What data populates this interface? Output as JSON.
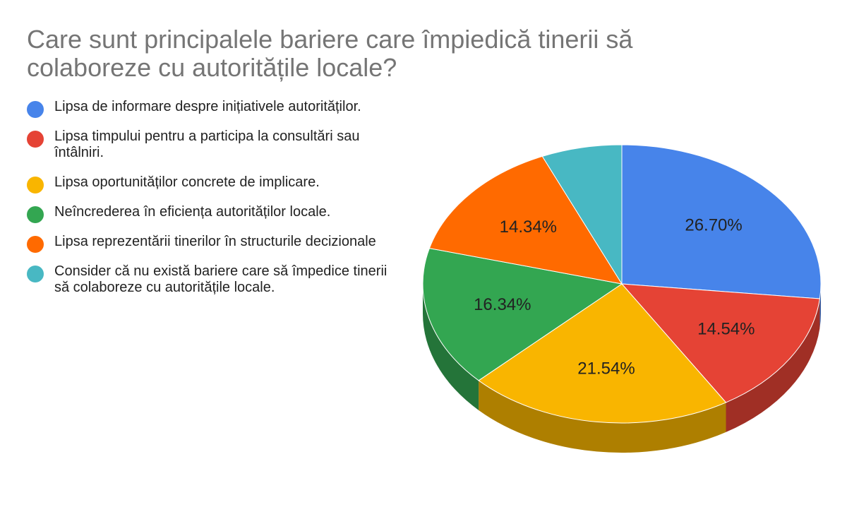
{
  "chart_data": {
    "type": "pie",
    "title": "Care sunt principalele bariere care împiedică tinerii să colaboreze cu autoritățile locale?",
    "legend_position": "left",
    "three_d": true,
    "slices": [
      {
        "label": "Lipsa de informare despre inițiativele autorităților.",
        "value": 26.7,
        "value_label": "26.70%",
        "color": "#4784ea"
      },
      {
        "label": "Lipsa timpului pentru a participa la consultări sau întâlniri.",
        "value": 14.54,
        "value_label": "14.54%",
        "color": "#e54335"
      },
      {
        "label": "Lipsa oportunităților concrete de implicare.",
        "value": 21.54,
        "value_label": "21.54%",
        "color": "#f9b500"
      },
      {
        "label": "Neîncrederea în eficiența autorităților locale.",
        "value": 16.34,
        "value_label": "16.34%",
        "color": "#33a651"
      },
      {
        "label": "Lipsa reprezentării tinerilor în structurile decizionale",
        "value": 14.34,
        "value_label": "14.34%",
        "color": "#ff6a00"
      },
      {
        "label": "Consider că nu există bariere care să împedice tinerii să colaboreze cu autoritățile locale.",
        "value": 6.54,
        "value_label": "",
        "color": "#48b8c3"
      }
    ]
  }
}
